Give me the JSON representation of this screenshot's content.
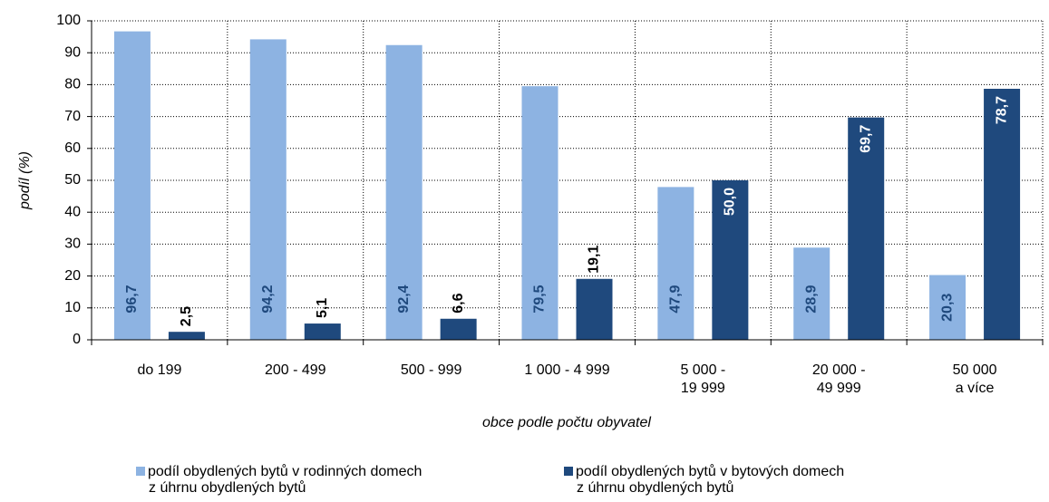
{
  "chart_data": {
    "type": "bar",
    "x_label": "obce podle počtu obyvatel",
    "y_label": "podíl (%)",
    "categories": [
      [
        "do 199"
      ],
      [
        "200 - 499"
      ],
      [
        "500 - 999"
      ],
      [
        "1 000 - 4 999"
      ],
      [
        "5 000 -",
        "19 999"
      ],
      [
        "20 000 -",
        "49 999"
      ],
      [
        "50 000",
        "a více"
      ]
    ],
    "series": [
      {
        "name": [
          "podíl obydlených bytů v rodinných domech",
          "z úhrnu obydlených bytů"
        ],
        "color": "#8db3e2",
        "values": [
          96.7,
          94.2,
          92.4,
          79.5,
          47.9,
          28.9,
          20.3
        ],
        "value_labels": [
          "96,7",
          "94,2",
          "92,4",
          "79,5",
          "47,9",
          "28,9",
          "20,3"
        ]
      },
      {
        "name": [
          "podíl obydlených bytů v bytových domech",
          "z úhrnu obydlených bytů"
        ],
        "color": "#1f497d",
        "values": [
          2.5,
          5.1,
          6.6,
          19.1,
          50.0,
          69.7,
          78.7
        ],
        "value_labels": [
          "2,5",
          "5,1",
          "6,6",
          "19,1",
          "50,0",
          "69,7",
          "78,7"
        ]
      }
    ],
    "ylim": [
      0,
      100
    ],
    "yticks": [
      0,
      10,
      20,
      30,
      40,
      50,
      60,
      70,
      80,
      90,
      100
    ],
    "grid": true
  }
}
